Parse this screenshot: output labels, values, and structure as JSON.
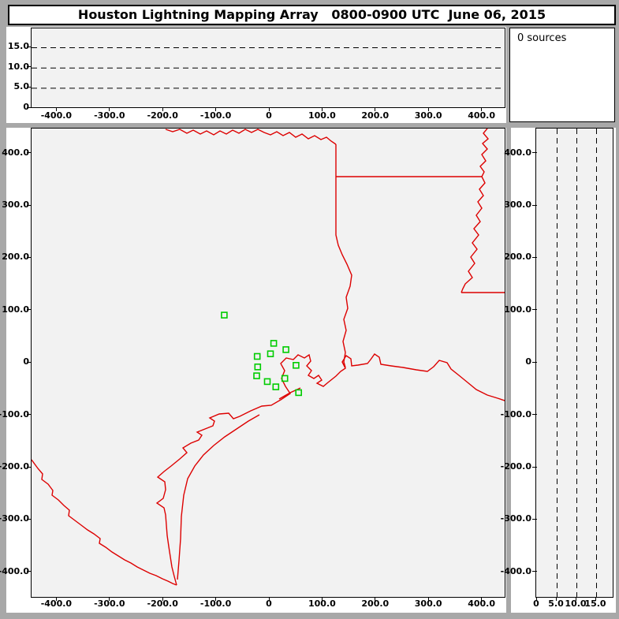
{
  "title": "Houston Lightning Mapping Array   0800-0900 UTC  June 06, 2015",
  "sources_panel": {
    "label": "0 sources"
  },
  "axes": {
    "ew_ticks": [
      {
        "v": -400,
        "label": "-400.0"
      },
      {
        "v": -300,
        "label": "-300.0"
      },
      {
        "v": -200,
        "label": "-200.0"
      },
      {
        "v": -100,
        "label": "-100.0"
      },
      {
        "v": 0,
        "label": "0"
      },
      {
        "v": 100,
        "label": "100.0"
      },
      {
        "v": 200,
        "label": "200.0"
      },
      {
        "v": 300,
        "label": "300.0"
      },
      {
        "v": 400,
        "label": "400.0"
      }
    ],
    "ns_ticks": [
      {
        "v": 400,
        "label": "400.0"
      },
      {
        "v": 300,
        "label": "300.0"
      },
      {
        "v": 200,
        "label": "200.0"
      },
      {
        "v": 100,
        "label": "100.0"
      },
      {
        "v": 0,
        "label": "0"
      },
      {
        "v": -100,
        "label": "-100.0"
      },
      {
        "v": -200,
        "label": "-200.0"
      },
      {
        "v": -300,
        "label": "-300.0"
      },
      {
        "v": -400,
        "label": "-400.0"
      }
    ],
    "alt_ticks": [
      {
        "v": 0,
        "label": "0"
      },
      {
        "v": 5,
        "label": "5.0"
      },
      {
        "v": 10,
        "label": "10.0"
      },
      {
        "v": 15,
        "label": "15.0"
      }
    ],
    "alt_grid": [
      5,
      10,
      15
    ],
    "ew_range_km": [
      -446,
      445
    ],
    "ns_range_km": [
      -448,
      446
    ],
    "alt_range_km": [
      0,
      19.5
    ]
  },
  "colors": {
    "background_frame": "#a8a8a8",
    "plot_background": "#f2f2f2",
    "state_border": "#dd0000",
    "county_border": "#a2a2a2",
    "station_marker": "#00cc00",
    "grid_dash": "#000000"
  },
  "chart_data": {
    "type": "scatter",
    "title": "Houston Lightning Mapping Array   0800-0900 UTC  June 06, 2015",
    "subtitle": "0 sources",
    "sources_count": 0,
    "legend": "green hollow squares = LMA station locations; red lines = state borders, rivers and Gulf coastline; gray lines = county boundaries; no lightning source points plotted during this hour",
    "panels": [
      {
        "name": "altitude_vs_east_west",
        "position": "top",
        "xlabel_values_km": [
          -400,
          -300,
          -200,
          -100,
          0,
          100,
          200,
          300,
          400
        ],
        "ylabel_values_km": [
          0,
          5,
          10,
          15
        ],
        "gridlines_km": [
          5,
          10,
          15
        ],
        "x_range_km": [
          -446,
          445
        ],
        "alt_range_km": [
          0,
          19.5
        ],
        "points": []
      },
      {
        "name": "plan_view_map",
        "position": "main",
        "xlabel_values_km": [
          -400,
          -300,
          -200,
          -100,
          0,
          100,
          200,
          300,
          400
        ],
        "ylabel_values_km": [
          400,
          300,
          200,
          100,
          0,
          -100,
          -200,
          -300,
          -400
        ],
        "x_range_km": [
          -446,
          445
        ],
        "y_range_km": [
          -448,
          446
        ],
        "points": [],
        "lma_stations_km": [
          [
            -84,
            94
          ],
          [
            9,
            40
          ],
          [
            32,
            28
          ],
          [
            3,
            20
          ],
          [
            -22,
            15
          ],
          [
            51,
            -2
          ],
          [
            -21,
            -5
          ],
          [
            -23,
            -22
          ],
          [
            30,
            -27
          ],
          [
            -3,
            -33
          ],
          [
            13,
            -43
          ],
          [
            56,
            -54
          ]
        ]
      },
      {
        "name": "altitude_vs_north_south",
        "position": "right",
        "xlabel_values_km": [
          0,
          5,
          10,
          15
        ],
        "ylabel_values_km": [
          400,
          300,
          200,
          100,
          0,
          -100,
          -200,
          -300,
          -400
        ],
        "gridlines_km": [
          5,
          10,
          15
        ],
        "alt_range_km": [
          0,
          19.4
        ],
        "y_range_km": [
          -448,
          446
        ],
        "points": []
      }
    ]
  }
}
